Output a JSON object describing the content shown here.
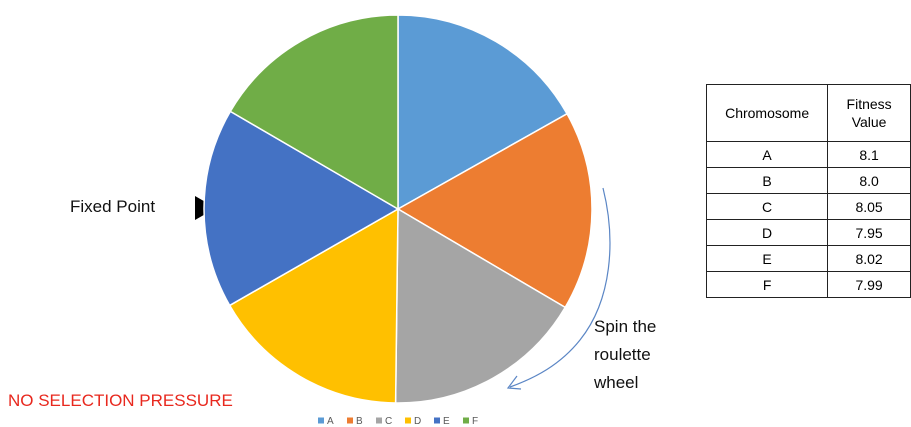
{
  "chart_data": {
    "type": "pie",
    "categories": [
      "A",
      "B",
      "C",
      "D",
      "E",
      "F"
    ],
    "values": [
      8.1,
      8.0,
      8.05,
      7.95,
      8.02,
      7.99
    ],
    "value_labels": [
      "8.1",
      "8.0",
      "8.05",
      "7.95",
      "8.02",
      "7.99"
    ],
    "colors": [
      "#5b9bd5",
      "#ed7d31",
      "#a5a5a5",
      "#ffc000",
      "#4472c4",
      "#70ad47"
    ],
    "table_headers": [
      "Chromosome",
      "Fitness Value"
    ],
    "pointer_label": "Fixed Point",
    "spin_label": "Spin the roulette wheel",
    "note": "NO SELECTION PRESSURE"
  }
}
